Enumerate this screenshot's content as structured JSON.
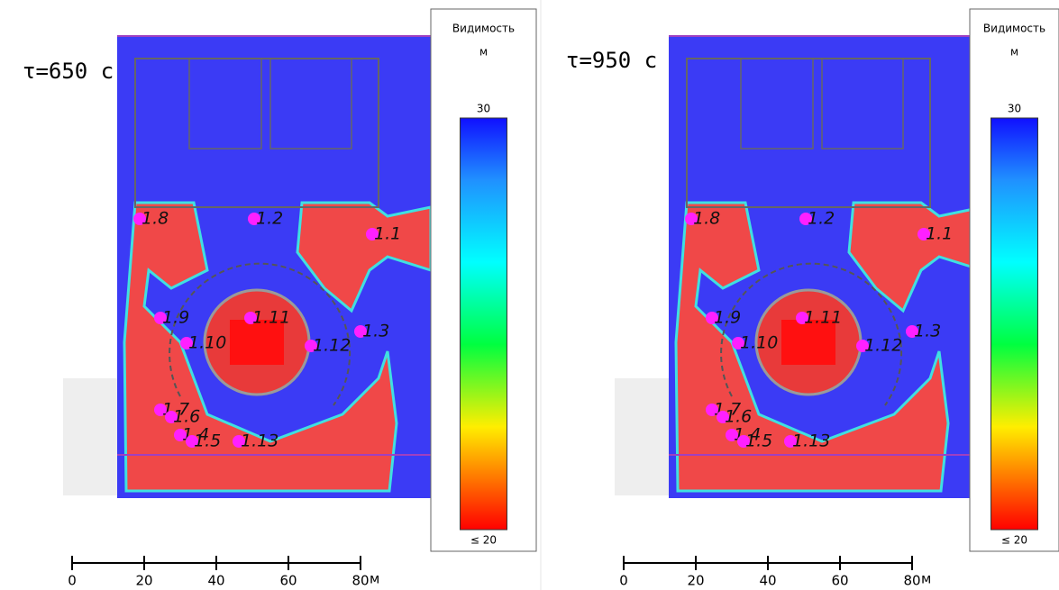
{
  "panels": [
    {
      "time_label": "τ=650 с",
      "legend": {
        "title": "Видимость",
        "unit": "м",
        "max": "30",
        "min": "≤ 20"
      },
      "scale": {
        "ticks": [
          0,
          20,
          40,
          60,
          80
        ],
        "unit": "м"
      },
      "points": [
        "1.8",
        "1.2",
        "1.1",
        "1.9",
        "1.11",
        "1.10",
        "1.12",
        "1.3",
        "1.7",
        "1.6",
        "1.4",
        "1.5",
        "1.13"
      ]
    },
    {
      "time_label": "τ=950 с",
      "legend": {
        "title": "Видимость",
        "unit": "м",
        "max": "30",
        "min": "≤ 20"
      },
      "scale": {
        "ticks": [
          0,
          20,
          40,
          60,
          80
        ],
        "unit": "м"
      },
      "points": [
        "1.8",
        "1.2",
        "1.1",
        "1.9",
        "1.11",
        "1.10",
        "1.12",
        "1.3",
        "1.7",
        "1.6",
        "1.4",
        "1.5",
        "1.13"
      ]
    }
  ]
}
